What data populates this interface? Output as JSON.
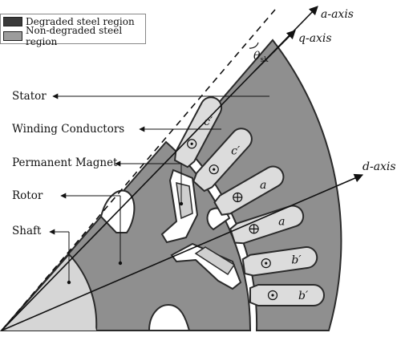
{
  "legend": {
    "items": [
      {
        "label": "Degraded steel region",
        "color": "#3a3a3a"
      },
      {
        "label": "Non-degraded steel region",
        "color": "#9c9c9c"
      }
    ]
  },
  "labels": {
    "stator": "Stator",
    "winding": "Winding Conductors",
    "magnet": "Permanent Magnet",
    "rotor": "Rotor",
    "shaft": "Shaft"
  },
  "axes": {
    "a_axis": "a-axis",
    "q_axis": "q-axis",
    "d_axis": "d-axis",
    "theta": "θ",
    "theta_sub": "sk"
  },
  "conductors": [
    "c′",
    "c′",
    "a",
    "a",
    "b′",
    "b′"
  ],
  "conductor_symbols": [
    "dot",
    "dot",
    "plus",
    "plus",
    "dot",
    "dot"
  ],
  "colors": {
    "steel": "#8f8f8f",
    "outline": "#2a2a2a",
    "slot_fill": "#dcdcdc",
    "shaft_fill": "#d6d6d6",
    "white": "#ffffff"
  }
}
